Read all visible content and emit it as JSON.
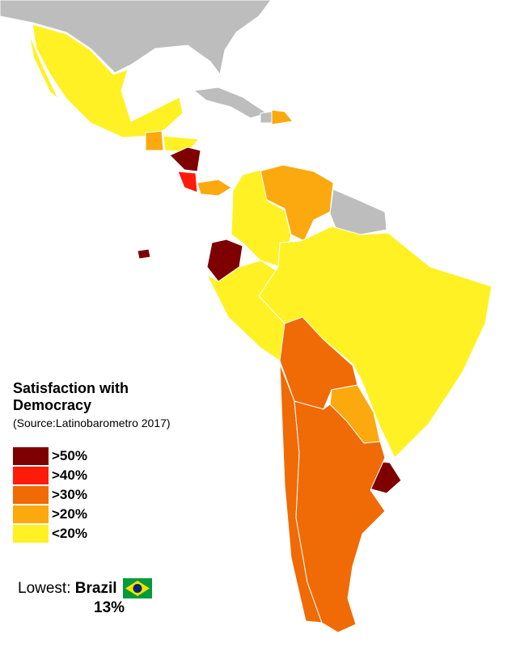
{
  "title": "Satisfaction with Democracy",
  "source": "(Source:Latinobarometro 2017)",
  "legend": [
    {
      "label": ">50%",
      "color": "#7f0000"
    },
    {
      "label": ">40%",
      "color": "#ff1a0a"
    },
    {
      "label": ">30%",
      "color": "#f06a06"
    },
    {
      "label": ">20%",
      "color": "#fba90e"
    },
    {
      "label": "<20%",
      "color": "#fff124"
    }
  ],
  "lowest": {
    "label": "Lowest:",
    "country": "Brazil",
    "value": "13%"
  }
}
